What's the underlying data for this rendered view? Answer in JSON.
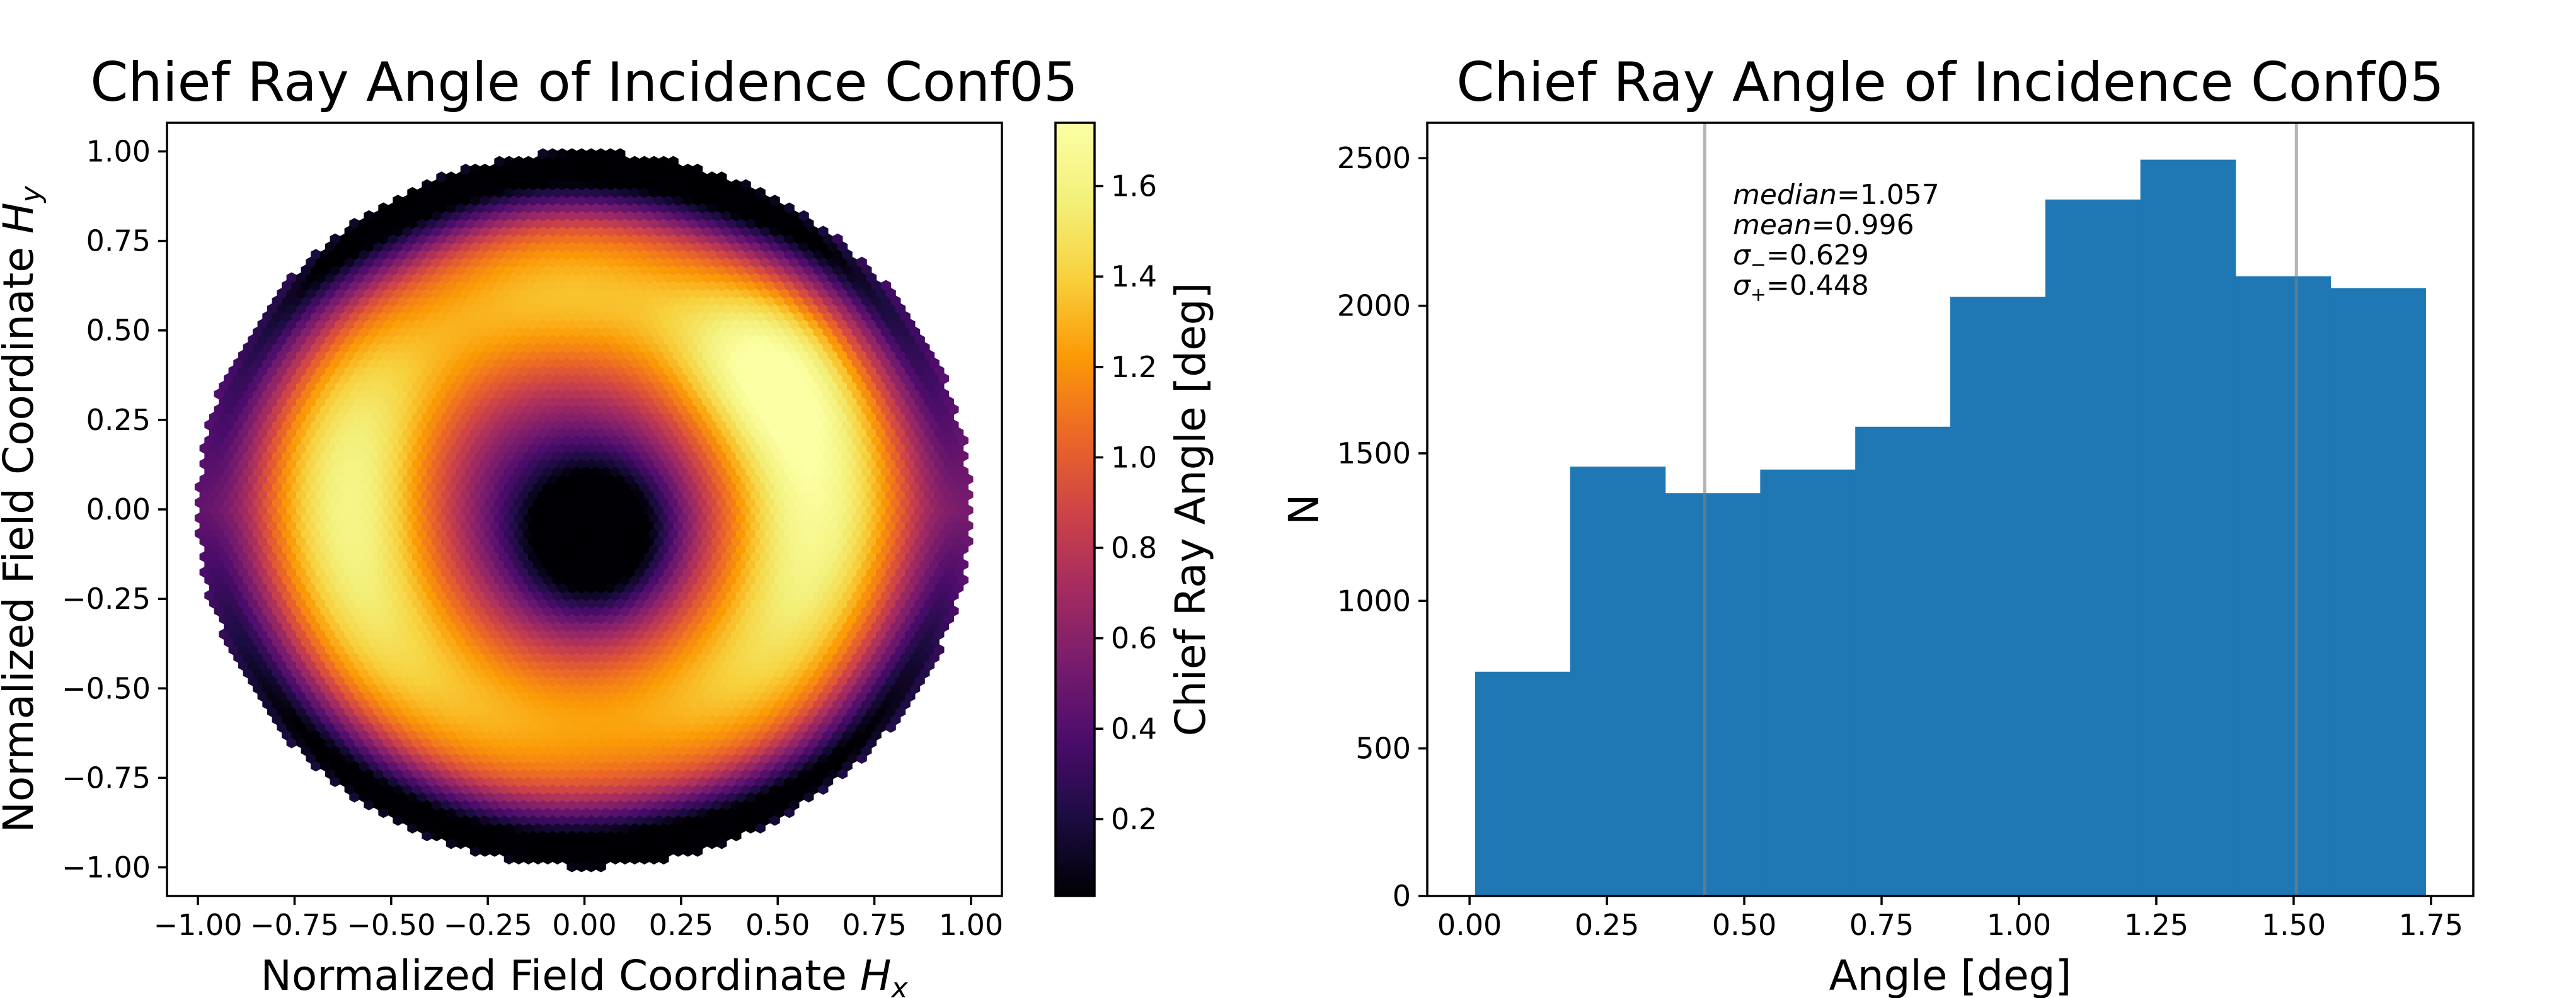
{
  "figure": {
    "name": "chief-ray-angle-figure"
  },
  "chart_data": [
    {
      "type": "heatmap",
      "subtype": "hexbin",
      "title": "Chief Ray Angle of Incidence Conf05",
      "xlabel_main": "Normalized Field Coordinate ",
      "xlabel_var": "H",
      "xlabel_sub": "x",
      "ylabel_main": "Normalized Field Coordinate ",
      "ylabel_var": "H",
      "ylabel_sub": "y",
      "xlim": [
        -1.08,
        1.08
      ],
      "ylim": [
        -1.08,
        1.08
      ],
      "x_ticks": [
        -1.0,
        -0.75,
        -0.5,
        -0.25,
        0.0,
        0.25,
        0.5,
        0.75,
        1.0
      ],
      "x_tick_labels": [
        "−1.00",
        "−0.75",
        "−0.50",
        "−0.25",
        "0.00",
        "0.25",
        "0.50",
        "0.75",
        "1.00"
      ],
      "y_ticks": [
        1.0,
        0.75,
        0.5,
        0.25,
        0.0,
        -0.25,
        -0.5,
        -0.75,
        -1.0
      ],
      "y_tick_labels": [
        "1.00",
        "0.75",
        "0.50",
        "0.25",
        "0.00",
        "−0.25",
        "−0.50",
        "−0.75",
        "−1.00"
      ],
      "field_radius": 1.0,
      "colormap": "inferno",
      "colorbar": {
        "label": "Chief Ray Angle [deg]",
        "range": [
          0.03,
          1.74
        ],
        "ticks": [
          1.6,
          1.4,
          1.2,
          1.0,
          0.8,
          0.6,
          0.4,
          0.2
        ],
        "tick_labels": [
          "1.6",
          "1.4",
          "1.2",
          "1.0",
          "0.8",
          "0.6",
          "0.4",
          "0.2"
        ]
      }
    },
    {
      "type": "bar",
      "subtype": "histogram",
      "title": "Chief Ray Angle of Incidence Conf05",
      "xlabel": "Angle [deg]",
      "ylabel": "N",
      "bin_edges": [
        0.01,
        0.183,
        0.356,
        0.529,
        0.702,
        0.875,
        1.048,
        1.221,
        1.394,
        1.567,
        1.74
      ],
      "values": [
        760,
        1455,
        1365,
        1445,
        1590,
        2030,
        2360,
        2495,
        2100,
        2060
      ],
      "color": "#1f77b4",
      "xlim": [
        -0.077,
        1.827
      ],
      "ylim": [
        0,
        2620
      ],
      "x_ticks": [
        0.0,
        0.25,
        0.5,
        0.75,
        1.0,
        1.25,
        1.5,
        1.75
      ],
      "x_tick_labels": [
        "0.00",
        "0.25",
        "0.50",
        "0.75",
        "1.00",
        "1.25",
        "1.50",
        "1.75"
      ],
      "y_ticks": [
        0,
        500,
        1000,
        1500,
        2000,
        2500
      ],
      "y_tick_labels": [
        "0",
        "500",
        "1000",
        "1500",
        "2000",
        "2500"
      ],
      "vlines": [
        0.428,
        1.505
      ],
      "vline_color": "#808080",
      "stats": [
        {
          "var": "median",
          "sym": "",
          "sub": "",
          "value": "=1.057"
        },
        {
          "var": "mean",
          "sym": "",
          "sub": "",
          "value": "=0.996"
        },
        {
          "var": "",
          "sym": "σ",
          "sub": "−",
          "value": "=0.629"
        },
        {
          "var": "",
          "sym": "σ",
          "sub": "+",
          "value": "=0.448"
        }
      ]
    }
  ]
}
